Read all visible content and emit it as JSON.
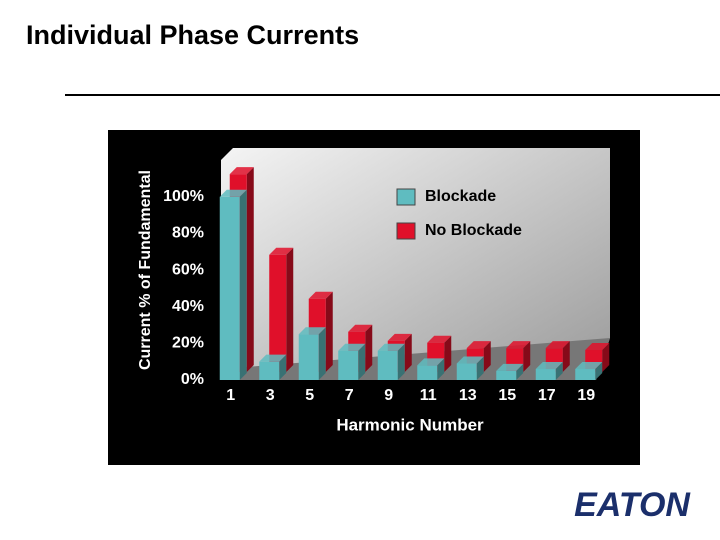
{
  "header": {
    "title": "Individual Phase Currents",
    "logo": "EATON"
  },
  "chart_data": {
    "type": "bar",
    "x_label": "Harmonic Number",
    "y_label": "Current % of Fundamental",
    "categories": [
      "1",
      "3",
      "5",
      "7",
      "9",
      "11",
      "13",
      "15",
      "17",
      "19"
    ],
    "series": [
      {
        "name": "Blockade",
        "color": "#5fbcc0",
        "values": [
          100,
          10,
          25,
          16,
          16,
          8,
          9,
          5,
          6,
          6
        ]
      },
      {
        "name": "No Blockade",
        "color": "#e0102a",
        "values": [
          108,
          64,
          40,
          22,
          17,
          16,
          13,
          13,
          13,
          12
        ]
      }
    ],
    "ylim": [
      0,
      125
    ],
    "yticks": [
      {
        "value": 0,
        "label": "0%"
      },
      {
        "value": 20,
        "label": "20%"
      },
      {
        "value": 40,
        "label": "40%"
      },
      {
        "value": 60,
        "label": "60%"
      },
      {
        "value": 80,
        "label": "80%"
      },
      {
        "value": 100,
        "label": "100%"
      }
    ]
  }
}
